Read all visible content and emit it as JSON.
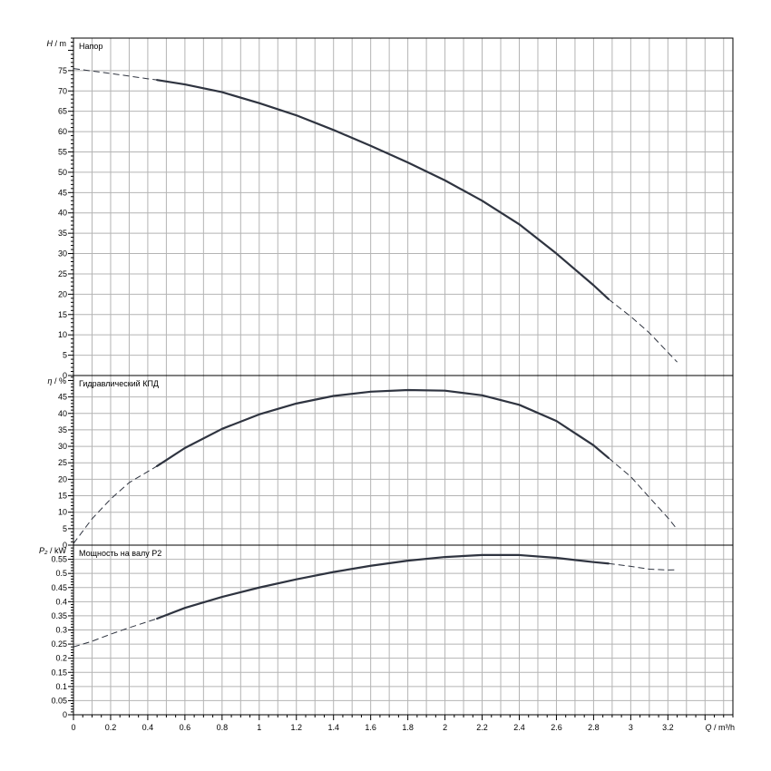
{
  "chart_data": {
    "type": "line",
    "x_axis": {
      "label_var": "Q",
      "label_unit": "m³/h",
      "ticks": [
        "0",
        "0.2",
        "0.4",
        "0.6",
        "0.8",
        "1",
        "1.2",
        "1.4",
        "1.6",
        "1.8",
        "2",
        "2.2",
        "2.4",
        "2.6",
        "2.8",
        "3",
        "3.2"
      ],
      "range": [
        0,
        3.55
      ]
    },
    "panels": [
      {
        "id": "head",
        "ylabel_var": "H",
        "ylabel_unit": "m",
        "title": "Напор",
        "ylim": [
          0,
          83
        ],
        "y_ticks": [
          "0",
          "5",
          "10",
          "15",
          "20",
          "25",
          "30",
          "35",
          "40",
          "45",
          "50",
          "55",
          "60",
          "65",
          "70",
          "75"
        ],
        "grid": true,
        "series": [
          {
            "style": "dashed",
            "x": [
              0,
              0.2,
              0.4,
              0.45
            ],
            "y": [
              75.5,
              74.3,
              73.0,
              72.7
            ]
          },
          {
            "style": "solid",
            "x": [
              0.45,
              0.6,
              0.8,
              1.0,
              1.2,
              1.4,
              1.6,
              1.8,
              2.0,
              2.2,
              2.4,
              2.6,
              2.8,
              2.88
            ],
            "y": [
              72.7,
              71.6,
              69.7,
              67.0,
              64.0,
              60.4,
              56.5,
              52.4,
              48.0,
              43.0,
              37.2,
              30.0,
              22.2,
              18.8
            ]
          },
          {
            "style": "dashed",
            "x": [
              2.88,
              3.0,
              3.1,
              3.2,
              3.25
            ],
            "y": [
              18.8,
              14.5,
              10.5,
              5.7,
              3.3
            ]
          }
        ]
      },
      {
        "id": "efficiency",
        "ylabel_var": "η",
        "ylabel_unit": "%",
        "title": "Гидравлический КПД",
        "ylim": [
          0,
          51.5
        ],
        "y_ticks": [
          "0",
          "5",
          "10",
          "15",
          "20",
          "25",
          "30",
          "35",
          "40",
          "45"
        ],
        "grid": true,
        "series": [
          {
            "style": "dashed",
            "x": [
              0,
              0.1,
              0.2,
              0.3,
              0.45
            ],
            "y": [
              0.5,
              8.0,
              14.0,
              19.0,
              24.0
            ]
          },
          {
            "style": "solid",
            "x": [
              0.45,
              0.6,
              0.8,
              1.0,
              1.2,
              1.4,
              1.6,
              1.8,
              2.0,
              2.2,
              2.4,
              2.6,
              2.8,
              2.88
            ],
            "y": [
              24.0,
              29.5,
              35.3,
              39.7,
              43.0,
              45.3,
              46.6,
              47.1,
              46.9,
              45.5,
              42.6,
              37.7,
              30.3,
              26.5
            ]
          },
          {
            "style": "dashed",
            "x": [
              2.88,
              3.0,
              3.1,
              3.2,
              3.25
            ],
            "y": [
              26.5,
              20.8,
              14.5,
              8.3,
              4.8
            ]
          }
        ]
      },
      {
        "id": "power",
        "ylabel_var": "P₂",
        "ylabel_unit": "kW",
        "title": "Мощность на валу P2",
        "ylim": [
          0,
          0.6
        ],
        "y_ticks": [
          "0",
          "0.05",
          "0.1",
          "0.15",
          "0.2",
          "0.25",
          "0.3",
          "0.35",
          "0.4",
          "0.45",
          "0.5",
          "0.55"
        ],
        "grid": true,
        "series": [
          {
            "style": "dashed",
            "x": [
              0,
              0.1,
              0.2,
              0.3,
              0.45
            ],
            "y": [
              0.24,
              0.26,
              0.285,
              0.308,
              0.34
            ]
          },
          {
            "style": "solid",
            "x": [
              0.45,
              0.6,
              0.8,
              1.0,
              1.2,
              1.4,
              1.6,
              1.8,
              2.0,
              2.2,
              2.4,
              2.6,
              2.8,
              2.88
            ],
            "y": [
              0.34,
              0.378,
              0.417,
              0.45,
              0.479,
              0.505,
              0.527,
              0.545,
              0.558,
              0.565,
              0.565,
              0.555,
              0.54,
              0.535
            ]
          },
          {
            "style": "dashed",
            "x": [
              2.88,
              3.0,
              3.1,
              3.2,
              3.25
            ],
            "y": [
              0.535,
              0.525,
              0.515,
              0.512,
              0.513
            ]
          }
        ]
      }
    ]
  }
}
